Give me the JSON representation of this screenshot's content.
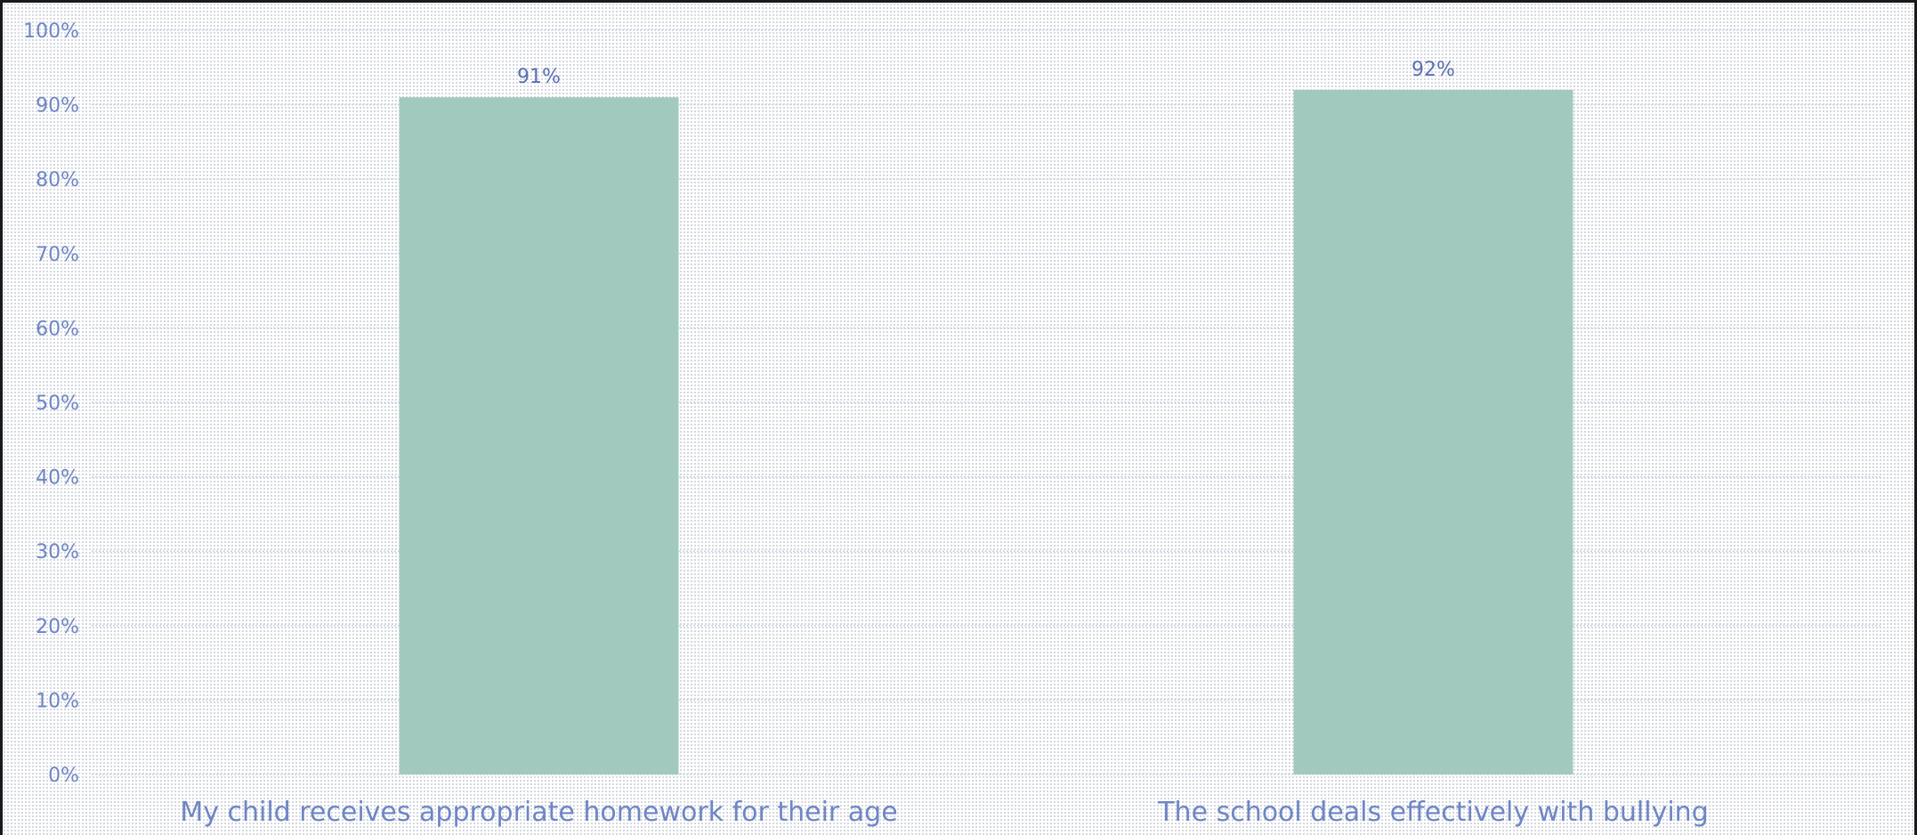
{
  "chart_data": {
    "type": "bar",
    "categories": [
      "My child receives appropriate homework for their age",
      "The school deals effectively with bullying"
    ],
    "values": [
      91,
      92
    ],
    "data_labels": [
      "91%",
      "92%"
    ],
    "ylim": [
      0,
      100
    ],
    "yticks": [
      "0%",
      "10%",
      "20%",
      "30%",
      "40%",
      "50%",
      "60%",
      "70%",
      "80%",
      "90%",
      "100%"
    ],
    "grid": true,
    "legend": "none",
    "colors": {
      "bar": "#a2c9be",
      "axis_text": "#6f86c4",
      "gridline": "#c8d4e8"
    }
  }
}
